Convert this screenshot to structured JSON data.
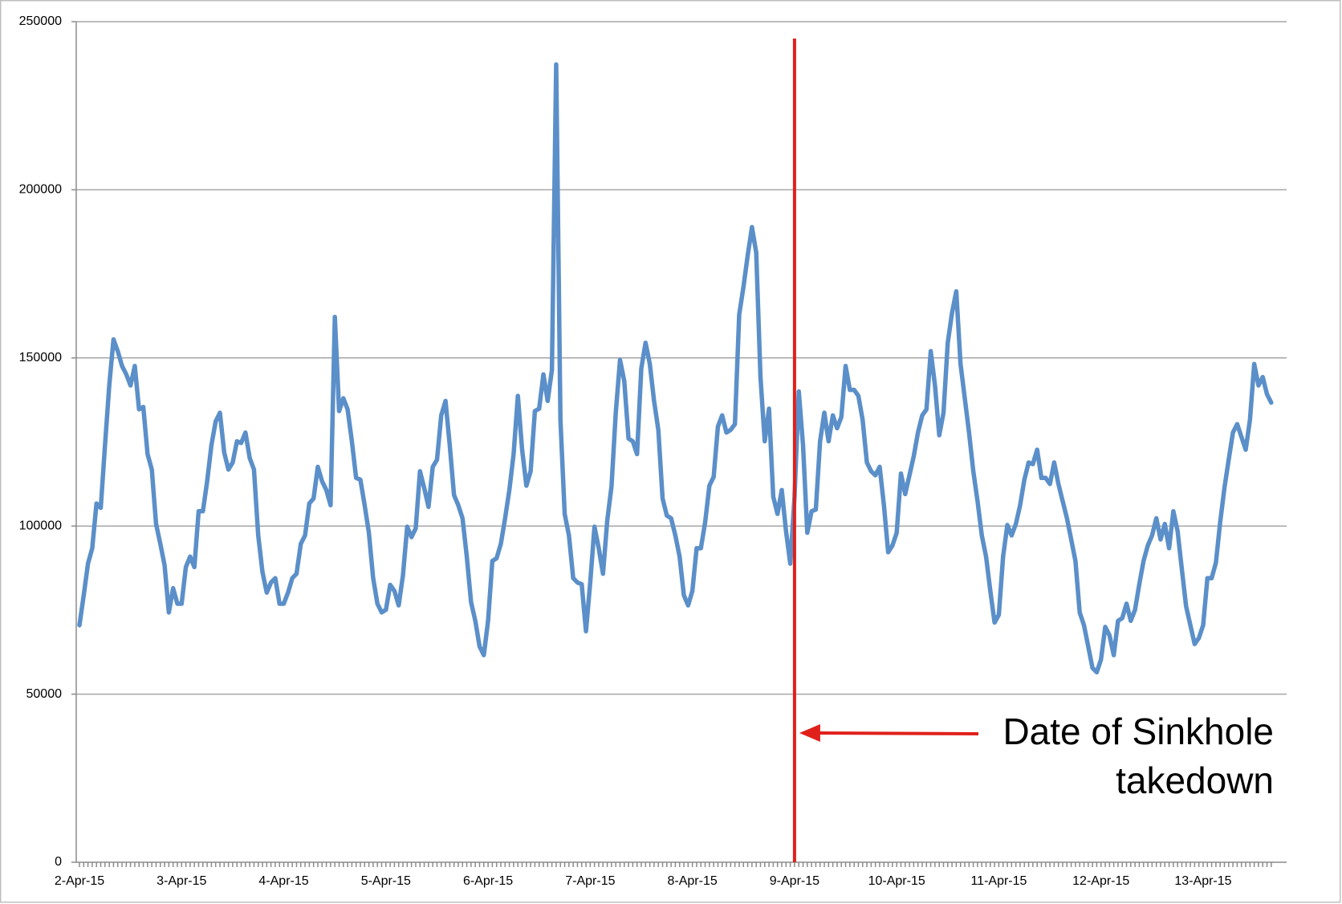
{
  "chart_data": {
    "type": "line",
    "categories": [
      "2-Apr-15",
      null,
      null,
      null,
      null,
      null,
      null,
      null,
      null,
      null,
      null,
      null,
      null,
      null,
      null,
      null,
      null,
      null,
      null,
      null,
      null,
      null,
      null,
      null,
      "3-Apr-15",
      null,
      null,
      null,
      null,
      null,
      null,
      null,
      null,
      null,
      null,
      null,
      null,
      null,
      null,
      null,
      null,
      null,
      null,
      null,
      null,
      null,
      null,
      null,
      "4-Apr-15",
      null,
      null,
      null,
      null,
      null,
      null,
      null,
      null,
      null,
      null,
      null,
      null,
      null,
      null,
      null,
      null,
      null,
      null,
      null,
      null,
      null,
      null,
      null,
      "5-Apr-15",
      null,
      null,
      null,
      null,
      null,
      null,
      null,
      null,
      null,
      null,
      null,
      null,
      null,
      null,
      null,
      null,
      null,
      null,
      null,
      null,
      null,
      null,
      null,
      "6-Apr-15",
      null,
      null,
      null,
      null,
      null,
      null,
      null,
      null,
      null,
      null,
      null,
      null,
      null,
      null,
      null,
      null,
      null,
      null,
      null,
      null,
      null,
      null,
      null,
      "7-Apr-15",
      null,
      null,
      null,
      null,
      null,
      null,
      null,
      null,
      null,
      null,
      null,
      null,
      null,
      null,
      null,
      null,
      null,
      null,
      null,
      null,
      null,
      null,
      null,
      "8-Apr-15",
      null,
      null,
      null,
      null,
      null,
      null,
      null,
      null,
      null,
      null,
      null,
      null,
      null,
      null,
      null,
      null,
      null,
      null,
      null,
      null,
      null,
      null,
      null,
      "9-Apr-15",
      null,
      null,
      null,
      null,
      null,
      null,
      null,
      null,
      null,
      null,
      null,
      null,
      null,
      null,
      null,
      null,
      null,
      null,
      null,
      null,
      null,
      null,
      null,
      "10-Apr-15",
      null,
      null,
      null,
      null,
      null,
      null,
      null,
      null,
      null,
      null,
      null,
      null,
      null,
      null,
      null,
      null,
      null,
      null,
      null,
      null,
      null,
      null,
      null,
      "11-Apr-15",
      null,
      null,
      null,
      null,
      null,
      null,
      null,
      null,
      null,
      null,
      null,
      null,
      null,
      null,
      null,
      null,
      null,
      null,
      null,
      null,
      null,
      null,
      null,
      "12-Apr-15",
      null,
      null,
      null,
      null,
      null,
      null,
      null,
      null,
      null,
      null,
      null,
      null,
      null,
      null,
      null,
      null,
      null,
      null,
      null,
      null,
      null,
      null,
      null,
      "13-Apr-15",
      null,
      null,
      null,
      null,
      null,
      null,
      null,
      null,
      null,
      null,
      null,
      null,
      null,
      null,
      null,
      null
    ],
    "values": [
      70500,
      79400,
      88800,
      93400,
      106700,
      105400,
      124000,
      141800,
      155500,
      152000,
      147600,
      145100,
      141800,
      147600,
      134700,
      135400,
      121400,
      116800,
      100600,
      94700,
      88300,
      74300,
      81500,
      76900,
      76900,
      87800,
      90900,
      87800,
      104400,
      104400,
      113300,
      124000,
      131100,
      133700,
      121900,
      116800,
      118900,
      125200,
      124700,
      127800,
      120200,
      116800,
      97200,
      86300,
      80200,
      83200,
      84500,
      76900,
      76900,
      80200,
      84500,
      85800,
      94700,
      97200,
      106700,
      108200,
      117600,
      113300,
      110700,
      106200,
      162200,
      134200,
      138000,
      134700,
      125200,
      114300,
      113800,
      106200,
      98000,
      84500,
      76900,
      74300,
      75100,
      82500,
      80700,
      76400,
      85300,
      99800,
      96700,
      99300,
      116300,
      111300,
      105700,
      117600,
      119700,
      132900,
      137200,
      124000,
      109200,
      106200,
      102300,
      90900,
      77400,
      71800,
      64200,
      61600,
      71800,
      89600,
      90400,
      94700,
      102300,
      110700,
      121400,
      138700,
      122700,
      112000,
      116300,
      134200,
      134900,
      145100,
      137200,
      146400,
      237300,
      131600,
      103600,
      97200,
      84500,
      83200,
      82700,
      68700,
      83200,
      99800,
      93400,
      85800,
      101600,
      111800,
      133700,
      149400,
      143100,
      126000,
      125200,
      121400,
      146900,
      154500,
      148200,
      137200,
      128600,
      108200,
      103100,
      102300,
      97200,
      90900,
      79400,
      76400,
      80700,
      93400,
      93400,
      101100,
      112000,
      114600,
      129600,
      132900,
      127800,
      128600,
      130300,
      162900,
      171100,
      180500,
      188900,
      181300,
      144300,
      125200,
      134900,
      108700,
      103600,
      110700,
      98500,
      88800,
      108700,
      140000,
      124000,
      98000,
      104400,
      104900,
      125200,
      133700,
      125200,
      132900,
      129100,
      132400,
      147600,
      140500,
      140500,
      138700,
      131600,
      118900,
      116300,
      115100,
      117600,
      106200,
      92200,
      94200,
      98000,
      115600,
      109500,
      115100,
      120700,
      127800,
      132900,
      134700,
      152000,
      141800,
      127000,
      133700,
      154500,
      163400,
      169800,
      148200,
      138000,
      127800,
      116300,
      107400,
      97200,
      90900,
      80700,
      71300,
      73600,
      90900,
      100300,
      97200,
      100600,
      106200,
      113800,
      118900,
      118400,
      122700,
      114300,
      114300,
      112500,
      118900,
      112500,
      107400,
      102300,
      96000,
      89600,
      74300,
      70500,
      64200,
      57800,
      56500,
      60300,
      70000,
      67500,
      61600,
      71800,
      72600,
      76900,
      71800,
      75100,
      82700,
      89600,
      94200,
      97200,
      102300,
      96000,
      100600,
      93400,
      104400,
      98500,
      87100,
      76100,
      70500,
      64900,
      66700,
      70500,
      84500,
      84500,
      89100,
      101100,
      111300,
      119700,
      127800,
      130300,
      126500,
      122700,
      131600,
      148200,
      141800,
      144300,
      139200,
      136700
    ],
    "color": "#5b8fc9",
    "ylim": [
      0,
      250000
    ],
    "yticks": [
      0,
      50000,
      100000,
      150000,
      200000,
      250000
    ],
    "grid": true,
    "annotation": {
      "text": [
        "Date of Sinkhole",
        "takedown"
      ],
      "x": "9-Apr-15",
      "color": "#e0201b"
    }
  }
}
